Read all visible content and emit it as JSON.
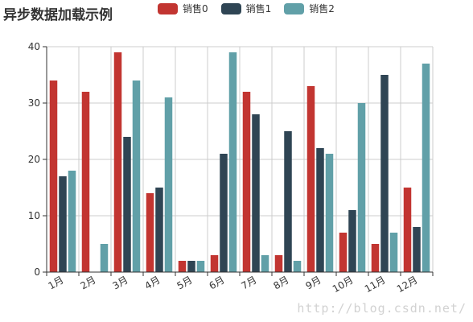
{
  "chart_data": {
    "type": "bar",
    "title": "异步数据加载示例",
    "categories": [
      "1月",
      "2月",
      "3月",
      "4月",
      "5月",
      "6月",
      "7月",
      "8月",
      "9月",
      "10月",
      "11月",
      "12月"
    ],
    "series": [
      {
        "name": "销售0",
        "color": "#c23531",
        "values": [
          34,
          32,
          39,
          14,
          2,
          3,
          32,
          3,
          33,
          7,
          5,
          15
        ]
      },
      {
        "name": "销售1",
        "color": "#2f4554",
        "values": [
          17,
          0,
          24,
          15,
          2,
          21,
          28,
          25,
          22,
          11,
          35,
          8
        ]
      },
      {
        "name": "销售2",
        "color": "#61a0a8",
        "values": [
          18,
          5,
          34,
          31,
          2,
          39,
          3,
          2,
          21,
          30,
          7,
          37
        ]
      }
    ],
    "ylim": [
      0,
      40
    ],
    "yticks": [
      0,
      10,
      20,
      30,
      40
    ],
    "grid": true,
    "legend_position": "top-center"
  },
  "watermark": "http://blog.csdn.net/"
}
